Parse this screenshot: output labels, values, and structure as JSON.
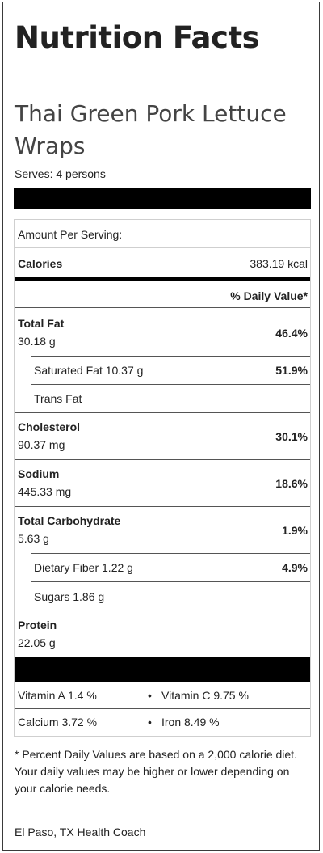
{
  "header": {
    "title": "Nutrition Facts",
    "recipe_name": "Thai Green Pork Lettuce Wraps",
    "serves": "Serves: 4 persons"
  },
  "table": {
    "amount_per_serving": "Amount Per Serving:",
    "calories_label": "Calories",
    "calories_value": "383.19 kcal",
    "daily_value_header": "% Daily Value*",
    "total_fat": {
      "label": "Total Fat",
      "amount": "30.18 g",
      "percent": "46.4%"
    },
    "saturated_fat": {
      "label": "Saturated Fat 10.37 g",
      "percent": "51.9%"
    },
    "trans_fat": {
      "label": "Trans Fat"
    },
    "cholesterol": {
      "label": "Cholesterol",
      "amount": "90.37 mg",
      "percent": "30.1%"
    },
    "sodium": {
      "label": "Sodium",
      "amount": "445.33 mg",
      "percent": "18.6%"
    },
    "total_carbohydrate": {
      "label": "Total Carbohydrate",
      "amount": "5.63 g",
      "percent": "1.9%"
    },
    "dietary_fiber": {
      "label": "Dietary Fiber 1.22 g",
      "percent": "4.9%"
    },
    "sugars": {
      "label": "Sugars 1.86 g"
    },
    "protein": {
      "label": "Protein",
      "amount": "22.05 g"
    },
    "vitamins": {
      "vitamin_a": "Vitamin A 1.4 %",
      "vitamin_c": "Vitamin C 9.75 %",
      "calcium": "Calcium 3.72 %",
      "iron": "Iron 8.49 %",
      "bullet": "•"
    }
  },
  "footnote": "* Percent Daily Values are based on a 2,000 calorie diet. Your daily values may be higher or lower depending on your calorie needs.",
  "coach": "El Paso, TX Health Coach"
}
